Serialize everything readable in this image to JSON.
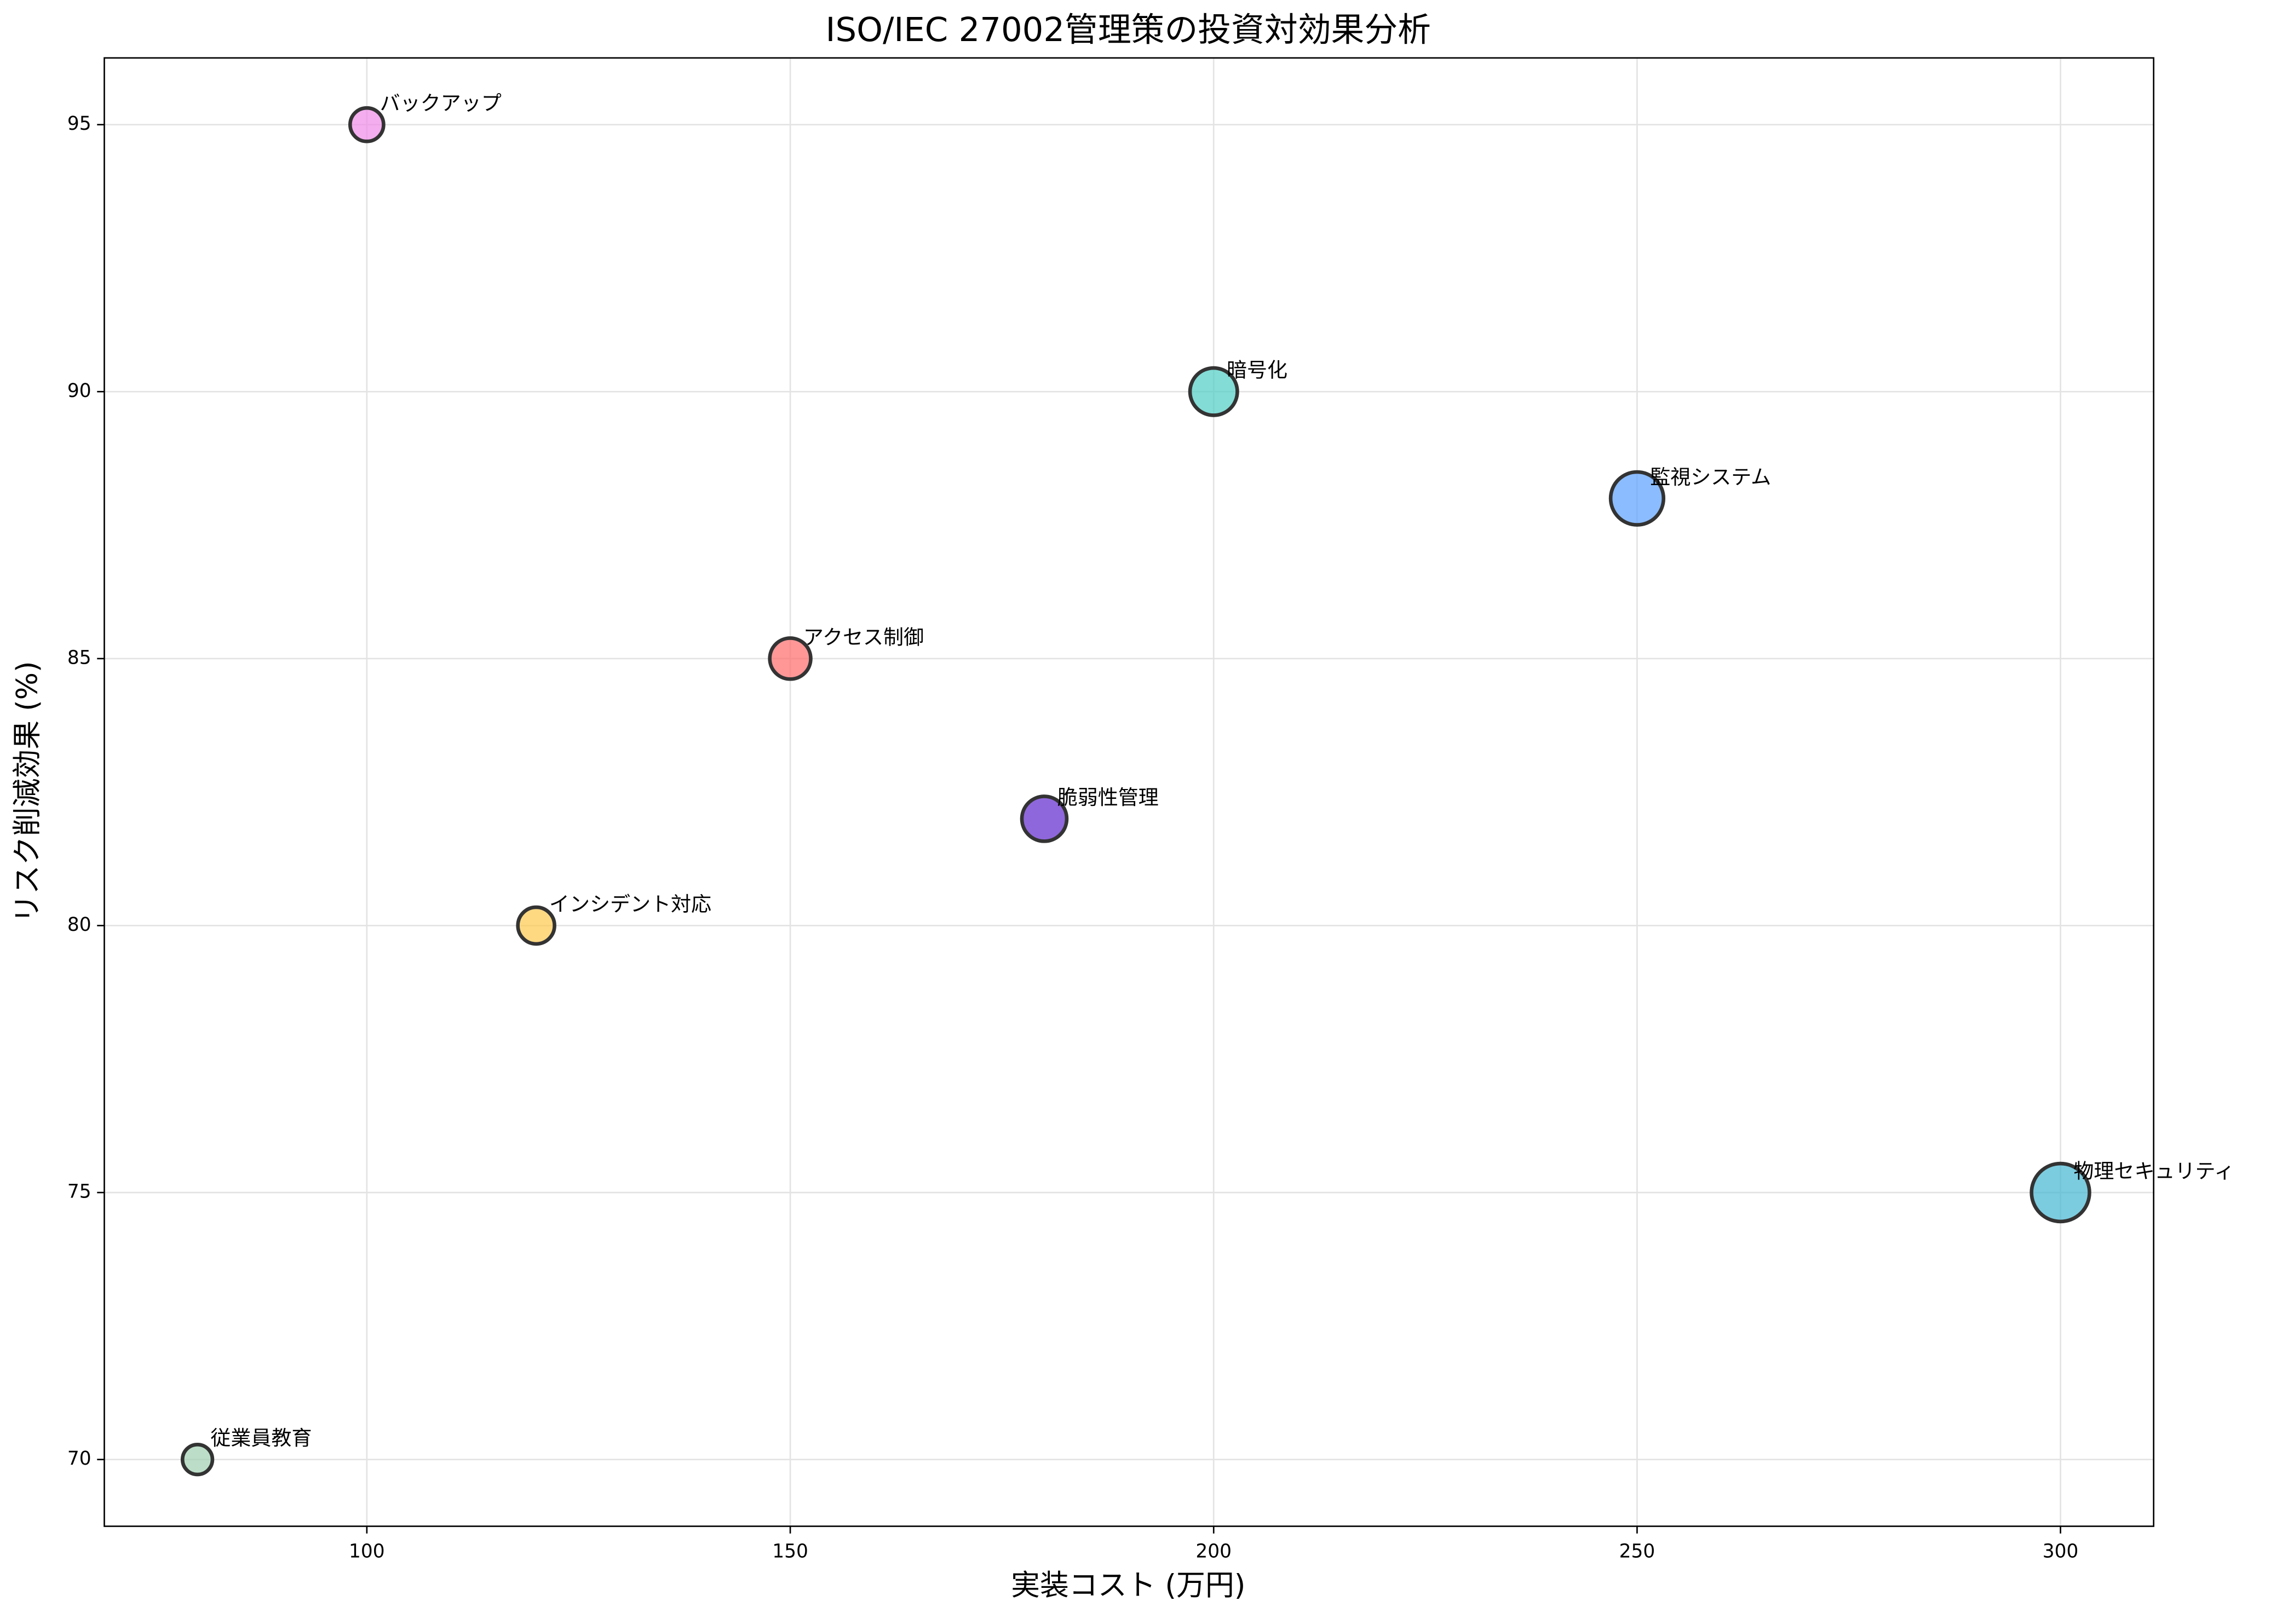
{
  "chart_data": {
    "type": "scatter",
    "title": "ISO/IEC 27002管理策の投資対効果分析",
    "xlabel": "実装コスト (万円)",
    "ylabel": "リスク削減効果 (%)",
    "labels": [
      "アクセス制御",
      "暗号化",
      "バックアップ",
      "監視システム",
      "インシデント対応",
      "従業員教育",
      "物理セキュリティ",
      "脆弱性管理"
    ],
    "x": [
      150,
      200,
      100,
      250,
      120,
      80,
      300,
      180
    ],
    "values": [
      85,
      90,
      95,
      88,
      80,
      70,
      75,
      82
    ],
    "colors": [
      "#ff6b6b",
      "#4ecdc4",
      "#f08ce8",
      "#5aa0ff",
      "#ffc94d",
      "#a0d0b0",
      "#45b7d1",
      "#5f27cd"
    ],
    "xlim": [
      69,
      311
    ],
    "xticks": [
      100,
      150,
      200,
      250,
      300
    ],
    "ylim": [
      68.75,
      96.25
    ],
    "yticks": [
      70,
      75,
      80,
      85,
      90,
      95
    ],
    "grid": true
  }
}
